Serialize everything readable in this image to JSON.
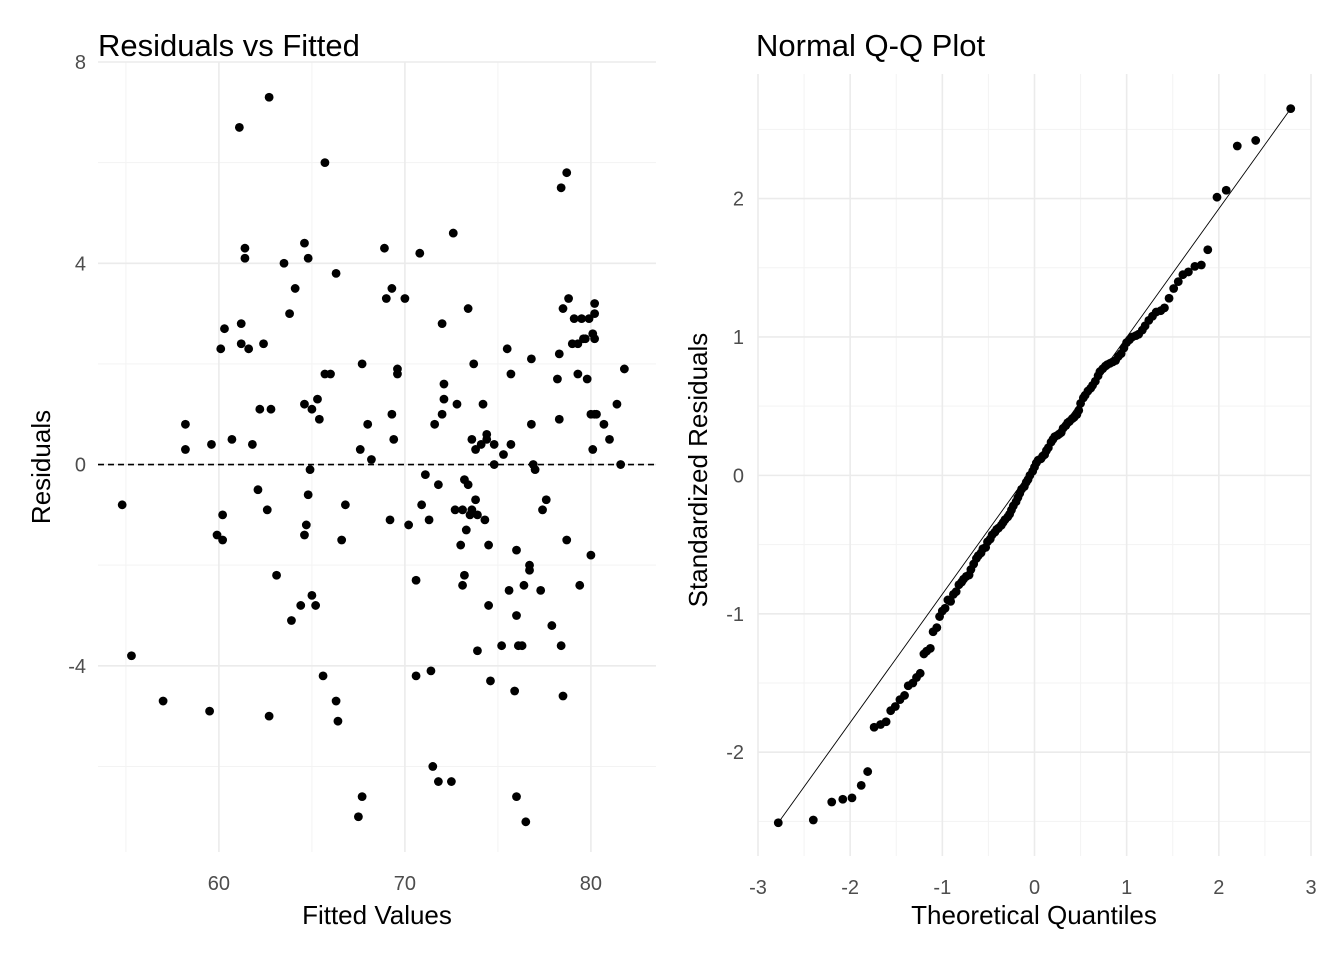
{
  "chart_data": [
    {
      "type": "scatter",
      "title": "Residuals vs Fitted",
      "xlabel": "Fitted Values",
      "ylabel": "Residuals",
      "xlim": [
        53.5,
        83.5
      ],
      "ylim": [
        -7.7,
        8.0
      ],
      "xticks": [
        60,
        70,
        80
      ],
      "yticks": [
        -4,
        0,
        4,
        8
      ],
      "reference_line": {
        "y": 0,
        "style": "dashed"
      },
      "grid": true,
      "points": [
        [
          54.8,
          -0.8
        ],
        [
          55.3,
          -3.8
        ],
        [
          57.0,
          -4.7
        ],
        [
          58.2,
          0.8
        ],
        [
          58.2,
          0.3
        ],
        [
          59.5,
          -4.9
        ],
        [
          59.6,
          0.4
        ],
        [
          59.9,
          -1.4
        ],
        [
          60.1,
          2.3
        ],
        [
          60.2,
          -1.5
        ],
        [
          60.2,
          -1.0
        ],
        [
          60.3,
          2.7
        ],
        [
          60.7,
          0.5
        ],
        [
          61.1,
          6.7
        ],
        [
          61.2,
          2.4
        ],
        [
          61.2,
          2.8
        ],
        [
          61.4,
          4.1
        ],
        [
          61.4,
          4.3
        ],
        [
          61.6,
          2.3
        ],
        [
          61.8,
          0.4
        ],
        [
          62.1,
          -0.5
        ],
        [
          62.2,
          1.1
        ],
        [
          62.4,
          2.4
        ],
        [
          62.6,
          -0.9
        ],
        [
          62.7,
          -5.0
        ],
        [
          62.7,
          7.3
        ],
        [
          62.8,
          1.1
        ],
        [
          63.1,
          -2.2
        ],
        [
          63.5,
          4.0
        ],
        [
          63.8,
          3.0
        ],
        [
          63.9,
          -3.1
        ],
        [
          64.1,
          3.5
        ],
        [
          64.4,
          -2.8
        ],
        [
          64.6,
          4.4
        ],
        [
          64.6,
          1.2
        ],
        [
          64.6,
          -1.4
        ],
        [
          64.7,
          -1.2
        ],
        [
          64.8,
          -0.6
        ],
        [
          64.8,
          4.1
        ],
        [
          64.9,
          -0.1
        ],
        [
          65.0,
          -2.6
        ],
        [
          65.0,
          1.1
        ],
        [
          65.2,
          -2.8
        ],
        [
          65.3,
          1.3
        ],
        [
          65.4,
          0.9
        ],
        [
          65.6,
          -4.2
        ],
        [
          65.7,
          6.0
        ],
        [
          65.7,
          1.8
        ],
        [
          66.0,
          1.8
        ],
        [
          66.3,
          -4.7
        ],
        [
          66.3,
          3.8
        ],
        [
          66.4,
          -5.1
        ],
        [
          66.6,
          -1.5
        ],
        [
          66.8,
          -0.8
        ],
        [
          67.5,
          -7.0
        ],
        [
          67.6,
          0.3
        ],
        [
          67.7,
          2.0
        ],
        [
          67.7,
          -6.6
        ],
        [
          68.0,
          0.8
        ],
        [
          68.2,
          0.1
        ],
        [
          68.9,
          4.3
        ],
        [
          69.0,
          3.3
        ],
        [
          69.2,
          -1.1
        ],
        [
          69.3,
          1.0
        ],
        [
          69.3,
          3.5
        ],
        [
          69.4,
          0.5
        ],
        [
          69.6,
          1.8
        ],
        [
          69.6,
          1.9
        ],
        [
          70.0,
          3.3
        ],
        [
          70.2,
          -1.2
        ],
        [
          70.6,
          -2.3
        ],
        [
          70.6,
          -4.2
        ],
        [
          70.8,
          4.2
        ],
        [
          70.9,
          -0.8
        ],
        [
          71.1,
          -0.2
        ],
        [
          71.3,
          -1.1
        ],
        [
          71.4,
          -4.1
        ],
        [
          71.5,
          -6.0
        ],
        [
          71.6,
          0.8
        ],
        [
          71.8,
          -0.4
        ],
        [
          71.8,
          -6.3
        ],
        [
          72.0,
          1.0
        ],
        [
          72.0,
          2.8
        ],
        [
          72.1,
          1.3
        ],
        [
          72.1,
          1.6
        ],
        [
          72.5,
          -6.3
        ],
        [
          72.6,
          4.6
        ],
        [
          72.7,
          -0.9
        ],
        [
          72.8,
          1.2
        ],
        [
          73.0,
          -1.6
        ],
        [
          73.1,
          -2.4
        ],
        [
          73.1,
          -0.9
        ],
        [
          73.2,
          -2.2
        ],
        [
          73.2,
          -0.3
        ],
        [
          73.3,
          -1.3
        ],
        [
          73.4,
          -0.4
        ],
        [
          73.4,
          3.1
        ],
        [
          73.5,
          -1.0
        ],
        [
          73.6,
          -0.9
        ],
        [
          73.6,
          0.5
        ],
        [
          73.7,
          2.0
        ],
        [
          73.8,
          0.3
        ],
        [
          73.8,
          -0.7
        ],
        [
          73.9,
          -1.0
        ],
        [
          73.9,
          -3.7
        ],
        [
          74.1,
          0.4
        ],
        [
          74.2,
          1.2
        ],
        [
          74.3,
          -1.1
        ],
        [
          74.4,
          0.5
        ],
        [
          74.4,
          0.6
        ],
        [
          74.5,
          -2.8
        ],
        [
          74.5,
          -1.6
        ],
        [
          74.6,
          -4.3
        ],
        [
          74.8,
          0.0
        ],
        [
          74.8,
          0.4
        ],
        [
          75.2,
          -3.6
        ],
        [
          75.3,
          0.2
        ],
        [
          75.5,
          2.3
        ],
        [
          75.6,
          -2.5
        ],
        [
          75.7,
          1.8
        ],
        [
          75.7,
          0.4
        ],
        [
          75.9,
          -4.5
        ],
        [
          76.0,
          -3.0
        ],
        [
          76.0,
          -6.6
        ],
        [
          76.0,
          -1.7
        ],
        [
          76.1,
          -3.6
        ],
        [
          76.3,
          -3.6
        ],
        [
          76.4,
          -2.4
        ],
        [
          76.5,
          -7.1
        ],
        [
          76.7,
          -2.0
        ],
        [
          76.7,
          -2.1
        ],
        [
          76.8,
          0.8
        ],
        [
          76.8,
          2.1
        ],
        [
          76.9,
          0.0
        ],
        [
          77.0,
          -0.1
        ],
        [
          77.3,
          -2.5
        ],
        [
          77.4,
          -0.9
        ],
        [
          77.6,
          -0.7
        ],
        [
          77.9,
          -3.2
        ],
        [
          78.2,
          1.7
        ],
        [
          78.3,
          0.9
        ],
        [
          78.3,
          2.2
        ],
        [
          78.4,
          -3.6
        ],
        [
          78.4,
          5.5
        ],
        [
          78.5,
          -4.6
        ],
        [
          78.5,
          3.1
        ],
        [
          78.7,
          -1.5
        ],
        [
          78.7,
          5.8
        ],
        [
          78.8,
          3.3
        ],
        [
          79.0,
          2.4
        ],
        [
          79.1,
          2.9
        ],
        [
          79.3,
          1.8
        ],
        [
          79.3,
          2.4
        ],
        [
          79.4,
          -2.4
        ],
        [
          79.5,
          2.9
        ],
        [
          79.6,
          2.5
        ],
        [
          79.7,
          2.5
        ],
        [
          79.8,
          1.7
        ],
        [
          79.9,
          2.9
        ],
        [
          80.0,
          1.0
        ],
        [
          80.0,
          -1.8
        ],
        [
          80.1,
          0.3
        ],
        [
          80.1,
          2.6
        ],
        [
          80.2,
          3.2
        ],
        [
          80.2,
          3.0
        ],
        [
          80.2,
          1.0
        ],
        [
          80.2,
          2.5
        ],
        [
          80.3,
          1.0
        ],
        [
          80.7,
          0.8
        ],
        [
          81.0,
          0.5
        ],
        [
          81.4,
          1.2
        ],
        [
          81.6,
          0.0
        ],
        [
          81.8,
          1.9
        ]
      ]
    },
    {
      "type": "scatter",
      "title": "Normal Q-Q Plot",
      "xlabel": "Theoretical Quantiles",
      "ylabel": "Standardized Residuals",
      "xlim": [
        -3.0,
        3.0
      ],
      "ylim": [
        -2.75,
        2.9
      ],
      "xticks": [
        -3,
        -2,
        -1,
        0,
        1,
        2,
        3
      ],
      "yticks": [
        -2,
        -1,
        0,
        1,
        2
      ],
      "reference_line": {
        "from": [
          -2.78,
          -2.51
        ],
        "to": [
          2.78,
          2.65
        ],
        "style": "solid"
      },
      "grid": true,
      "points": [
        [
          -2.78,
          -2.51
        ],
        [
          -2.4,
          -2.49
        ],
        [
          -2.2,
          -2.36
        ],
        [
          -2.08,
          -2.34
        ],
        [
          -1.98,
          -2.33
        ],
        [
          -1.88,
          -2.24
        ],
        [
          -1.81,
          -2.14
        ],
        [
          -1.74,
          -1.82
        ],
        [
          -1.67,
          -1.8
        ],
        [
          -1.61,
          -1.78
        ],
        [
          -1.56,
          -1.7
        ],
        [
          -1.51,
          -1.67
        ],
        [
          -1.46,
          -1.62
        ],
        [
          -1.41,
          -1.59
        ],
        [
          -1.37,
          -1.52
        ],
        [
          -1.32,
          -1.5
        ],
        [
          -1.28,
          -1.46
        ],
        [
          -1.24,
          -1.43
        ],
        [
          -1.2,
          -1.29
        ],
        [
          -1.17,
          -1.27
        ],
        [
          -1.13,
          -1.25
        ],
        [
          -1.1,
          -1.13
        ],
        [
          -1.06,
          -1.1
        ],
        [
          -1.03,
          -1.02
        ],
        [
          -1.0,
          -0.98
        ],
        [
          -0.97,
          -0.96
        ],
        [
          -0.94,
          -0.9
        ],
        [
          -0.91,
          -0.91
        ],
        [
          -0.88,
          -0.86
        ],
        [
          -0.85,
          -0.84
        ],
        [
          -0.82,
          -0.79
        ],
        [
          -0.79,
          -0.77
        ],
        [
          -0.77,
          -0.75
        ],
        [
          -0.74,
          -0.73
        ],
        [
          -0.71,
          -0.72
        ],
        [
          -0.69,
          -0.68
        ],
        [
          -0.66,
          -0.64
        ],
        [
          -0.63,
          -0.6
        ],
        [
          -0.61,
          -0.58
        ],
        [
          -0.58,
          -0.56
        ],
        [
          -0.56,
          -0.53
        ],
        [
          -0.53,
          -0.52
        ],
        [
          -0.51,
          -0.48
        ],
        [
          -0.48,
          -0.46
        ],
        [
          -0.46,
          -0.43
        ],
        [
          -0.43,
          -0.41
        ],
        [
          -0.41,
          -0.39
        ],
        [
          -0.39,
          -0.38
        ],
        [
          -0.36,
          -0.36
        ],
        [
          -0.34,
          -0.34
        ],
        [
          -0.32,
          -0.32
        ],
        [
          -0.29,
          -0.3
        ],
        [
          -0.27,
          -0.28
        ],
        [
          -0.25,
          -0.25
        ],
        [
          -0.23,
          -0.22
        ],
        [
          -0.2,
          -0.19
        ],
        [
          -0.18,
          -0.16
        ],
        [
          -0.16,
          -0.13
        ],
        [
          -0.14,
          -0.1
        ],
        [
          -0.11,
          -0.08
        ],
        [
          -0.09,
          -0.05
        ],
        [
          -0.07,
          -0.03
        ],
        [
          -0.05,
          0.0
        ],
        [
          -0.02,
          0.03
        ],
        [
          0.0,
          0.06
        ],
        [
          0.02,
          0.09
        ],
        [
          0.04,
          0.11
        ],
        [
          0.07,
          0.12
        ],
        [
          0.09,
          0.14
        ],
        [
          0.11,
          0.15
        ],
        [
          0.13,
          0.18
        ],
        [
          0.15,
          0.2
        ],
        [
          0.18,
          0.24
        ],
        [
          0.2,
          0.26
        ],
        [
          0.22,
          0.28
        ],
        [
          0.25,
          0.29
        ],
        [
          0.27,
          0.3
        ],
        [
          0.29,
          0.31
        ],
        [
          0.31,
          0.34
        ],
        [
          0.34,
          0.36
        ],
        [
          0.36,
          0.38
        ],
        [
          0.38,
          0.39
        ],
        [
          0.41,
          0.41
        ],
        [
          0.43,
          0.42
        ],
        [
          0.46,
          0.44
        ],
        [
          0.48,
          0.47
        ],
        [
          0.5,
          0.52
        ],
        [
          0.53,
          0.56
        ],
        [
          0.55,
          0.58
        ],
        [
          0.58,
          0.61
        ],
        [
          0.61,
          0.63
        ],
        [
          0.63,
          0.65
        ],
        [
          0.66,
          0.68
        ],
        [
          0.69,
          0.72
        ],
        [
          0.71,
          0.75
        ],
        [
          0.74,
          0.77
        ],
        [
          0.77,
          0.79
        ],
        [
          0.79,
          0.8
        ],
        [
          0.82,
          0.81
        ],
        [
          0.85,
          0.82
        ],
        [
          0.88,
          0.83
        ],
        [
          0.91,
          0.86
        ],
        [
          0.94,
          0.88
        ],
        [
          0.97,
          0.92
        ],
        [
          1.0,
          0.96
        ],
        [
          1.03,
          0.98
        ],
        [
          1.06,
          1.0
        ],
        [
          1.1,
          1.01
        ],
        [
          1.13,
          1.02
        ],
        [
          1.17,
          1.05
        ],
        [
          1.2,
          1.08
        ],
        [
          1.24,
          1.12
        ],
        [
          1.28,
          1.15
        ],
        [
          1.32,
          1.18
        ],
        [
          1.37,
          1.19
        ],
        [
          1.41,
          1.21
        ],
        [
          1.46,
          1.28
        ],
        [
          1.51,
          1.35
        ],
        [
          1.56,
          1.4
        ],
        [
          1.61,
          1.45
        ],
        [
          1.67,
          1.47
        ],
        [
          1.74,
          1.51
        ],
        [
          1.81,
          1.52
        ],
        [
          1.88,
          1.63
        ],
        [
          1.98,
          2.01
        ],
        [
          2.08,
          2.06
        ],
        [
          2.2,
          2.38
        ],
        [
          2.4,
          2.42
        ],
        [
          2.78,
          2.65
        ]
      ]
    }
  ]
}
